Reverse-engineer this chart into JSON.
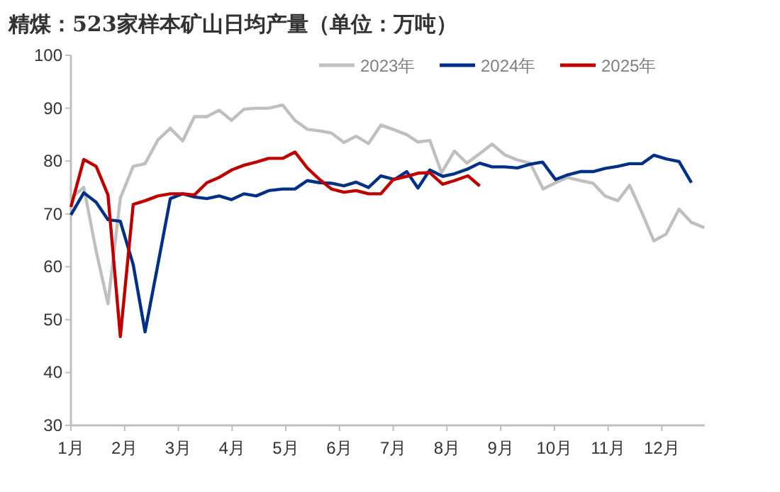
{
  "chart_data": {
    "type": "line",
    "title": "精煤：523家样本矿山日均产量（单位：万吨）",
    "xlim": [
      1,
      12.8
    ],
    "xticks": [
      {
        "value": 1,
        "label": "1月"
      },
      {
        "value": 2,
        "label": "2月"
      },
      {
        "value": 3,
        "label": "3月"
      },
      {
        "value": 4,
        "label": "4月"
      },
      {
        "value": 5,
        "label": "5月"
      },
      {
        "value": 6,
        "label": "6月"
      },
      {
        "value": 7,
        "label": "7月"
      },
      {
        "value": 8,
        "label": "8月"
      },
      {
        "value": 9,
        "label": "9月"
      },
      {
        "value": 10,
        "label": "10月"
      },
      {
        "value": 11,
        "label": "11月"
      },
      {
        "value": 12,
        "label": "12月"
      }
    ],
    "ylim": [
      30,
      100
    ],
    "yticks": [
      30,
      40,
      50,
      60,
      70,
      80,
      90,
      100
    ],
    "grid": false,
    "legend": "top",
    "marker": "none",
    "line_style": "solid",
    "series": [
      {
        "name": "2023年",
        "color": "#bfbfbf",
        "x": [
          1.0,
          1.24,
          1.47,
          1.69,
          1.92,
          2.16,
          2.38,
          2.62,
          2.85,
          3.08,
          3.3,
          3.53,
          3.76,
          3.99,
          4.22,
          4.45,
          4.68,
          4.94,
          5.17,
          5.4,
          5.63,
          5.85,
          6.08,
          6.31,
          6.54,
          6.77,
          7.02,
          7.25,
          7.46,
          7.68,
          7.9,
          8.14,
          8.37,
          8.61,
          8.84,
          9.07,
          9.31,
          9.55,
          9.79,
          10.02,
          10.25,
          10.48,
          10.72,
          10.94,
          11.18,
          11.4,
          11.63,
          11.85,
          12.08,
          12.32,
          12.55,
          12.79
        ],
        "values": [
          73,
          75,
          63,
          53,
          73,
          79,
          79.5,
          84,
          86.2,
          83.8,
          88.4,
          88.4,
          89.6,
          87.7,
          89.8,
          90,
          90,
          90.6,
          87.7,
          86,
          85.7,
          85.3,
          83.5,
          84.7,
          83.3,
          86.8,
          85.9,
          85,
          83.6,
          83.9,
          77.8,
          81.9,
          79.6,
          81.4,
          83.2,
          81.2,
          80.2,
          79.6,
          74.7,
          75.9,
          76.9,
          76.3,
          75.8,
          73.4,
          72.5,
          75.4,
          70.2,
          64.9,
          66.2,
          70.9,
          68.4,
          67.4
        ]
      },
      {
        "name": "2024年",
        "color": "#003087",
        "x": [
          1.0,
          1.24,
          1.47,
          1.69,
          1.92,
          2.16,
          2.38,
          2.62,
          2.85,
          3.08,
          3.3,
          3.53,
          3.76,
          3.99,
          4.22,
          4.45,
          4.68,
          4.94,
          5.17,
          5.4,
          5.63,
          5.85,
          6.08,
          6.31,
          6.54,
          6.77,
          7.02,
          7.25,
          7.46,
          7.68,
          7.92,
          8.14,
          8.39,
          8.61,
          8.84,
          9.07,
          9.31,
          9.55,
          9.78,
          10.02,
          10.25,
          10.48,
          10.72,
          10.94,
          11.18,
          11.4,
          11.63,
          11.85,
          12.08,
          12.32,
          12.55
        ],
        "values": [
          69.8,
          74,
          72.2,
          68.9,
          68.6,
          60.4,
          47.7,
          60.5,
          72.9,
          73.8,
          73.2,
          72.9,
          73.4,
          72.7,
          73.8,
          73.4,
          74.4,
          74.7,
          74.7,
          76.3,
          75.9,
          75.8,
          75.3,
          76,
          75,
          77.2,
          76.5,
          78,
          74.9,
          78.3,
          77.1,
          77.6,
          78.5,
          79.6,
          78.9,
          78.9,
          78.7,
          79.4,
          79.8,
          76.5,
          77.4,
          78,
          78,
          78.6,
          79,
          79.5,
          79.5,
          81.1,
          80.4,
          79.9,
          75.9
        ]
      },
      {
        "name": "2025年",
        "color": "#c00000",
        "x": [
          1.0,
          1.24,
          1.47,
          1.69,
          1.92,
          2.16,
          2.38,
          2.62,
          2.85,
          3.08,
          3.3,
          3.53,
          3.76,
          3.99,
          4.22,
          4.45,
          4.68,
          4.94,
          5.17,
          5.4,
          5.63,
          5.85,
          6.08,
          6.31,
          6.54,
          6.77,
          7.0,
          7.25,
          7.46,
          7.68,
          7.92,
          8.14,
          8.39,
          8.61
        ],
        "values": [
          71.3,
          80.3,
          79,
          73.6,
          46.8,
          71.8,
          72.5,
          73.4,
          73.8,
          73.8,
          73.6,
          75.9,
          76.9,
          78.3,
          79.2,
          79.8,
          80.5,
          80.5,
          81.7,
          78.7,
          76.5,
          74.7,
          74.1,
          74.4,
          73.8,
          73.8,
          76.5,
          77.1,
          77.7,
          77.8,
          75.6,
          76.3,
          77.2,
          75.3
        ]
      }
    ]
  }
}
